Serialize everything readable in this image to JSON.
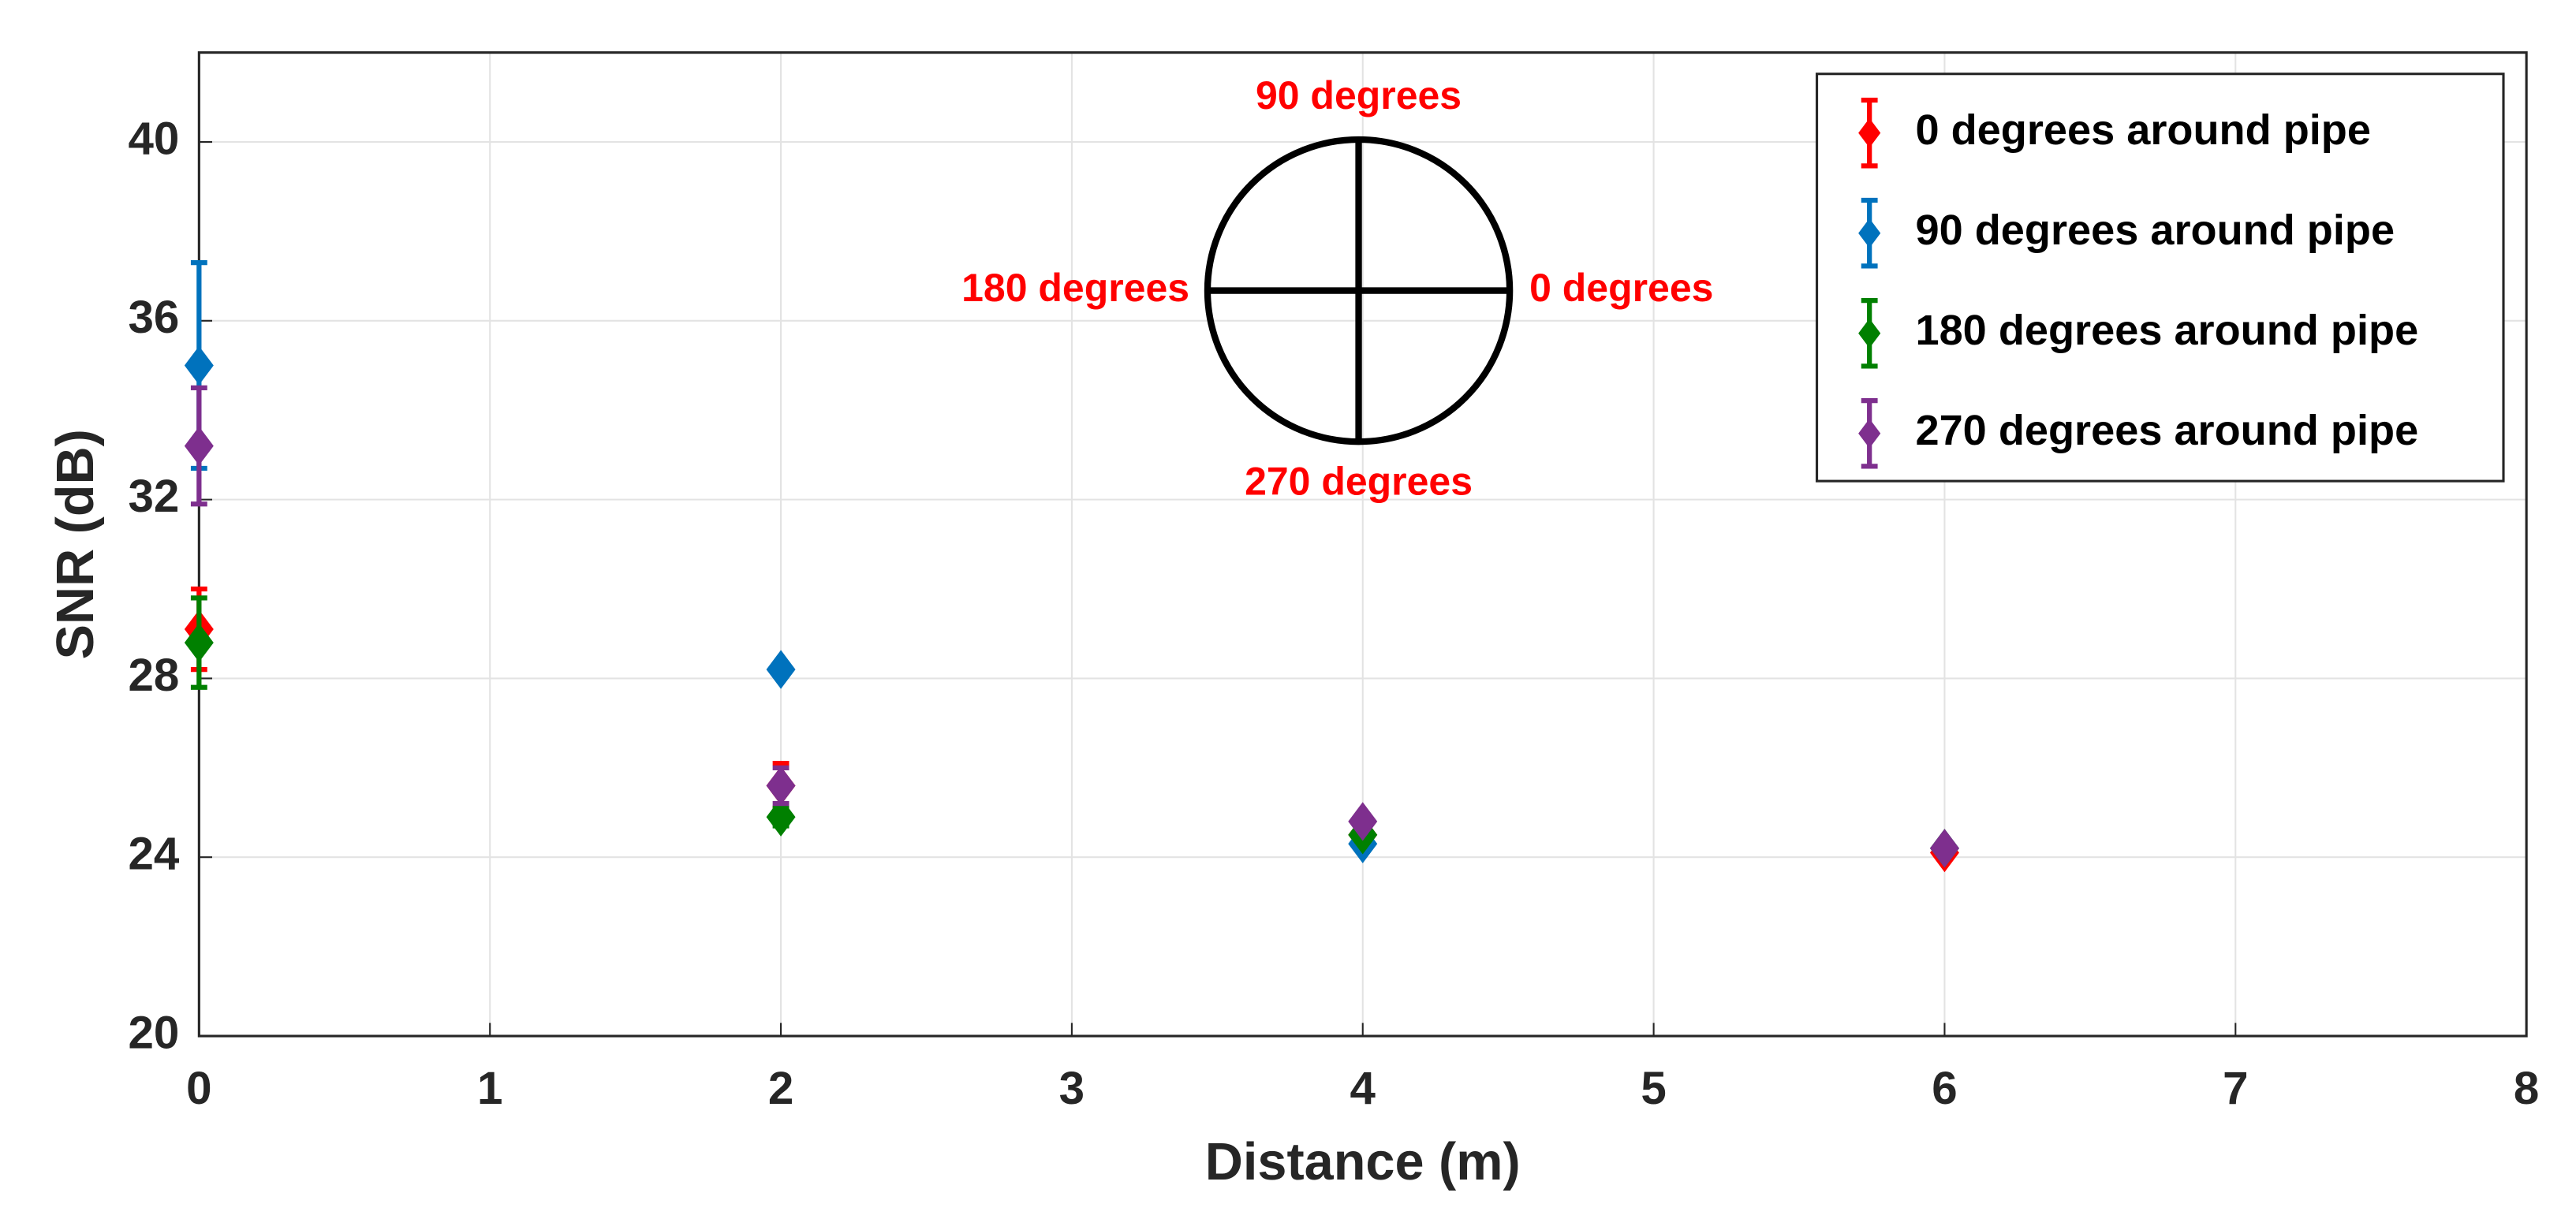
{
  "chart_data": {
    "type": "scatter",
    "xlabel": "Distance (m)",
    "ylabel": "SNR (dB)",
    "xlim": [
      0,
      8
    ],
    "xticks": [
      0,
      1,
      2,
      3,
      4,
      5,
      6,
      7,
      8
    ],
    "ylim": [
      20,
      42
    ],
    "yticks": [
      20,
      24,
      28,
      32,
      36,
      40
    ],
    "grid": true,
    "legend": "upper right",
    "annotations": [
      "90 degrees",
      "180 degrees",
      "0 degrees",
      "270 degrees"
    ],
    "annotation_color": "#ff0000",
    "series": [
      {
        "name": "0 degrees around pipe",
        "color": "#ff0000",
        "x": [
          0,
          2,
          4,
          6
        ],
        "values": [
          29.1,
          25.6,
          24.5,
          24.1
        ],
        "errors": [
          0.9,
          0.5,
          0.1,
          0.1
        ]
      },
      {
        "name": "90 degrees around pipe",
        "color": "#0072bd",
        "x": [
          0,
          2,
          4,
          6
        ],
        "values": [
          35.0,
          28.2,
          24.3,
          24.2
        ],
        "errors": [
          2.3,
          0.1,
          0.1,
          0.1
        ]
      },
      {
        "name": "180 degrees around pipe",
        "color": "#008000",
        "x": [
          0,
          2,
          4,
          6
        ],
        "values": [
          28.8,
          24.9,
          24.5,
          24.2
        ],
        "errors": [
          1.0,
          0.2,
          0.1,
          0.1
        ]
      },
      {
        "name": "270 degrees around pipe",
        "color": "#7e2f8e",
        "x": [
          0,
          2,
          4,
          6
        ],
        "values": [
          33.2,
          25.6,
          24.8,
          24.2
        ],
        "errors": [
          1.3,
          0.4,
          0.1,
          0.1
        ]
      }
    ]
  }
}
